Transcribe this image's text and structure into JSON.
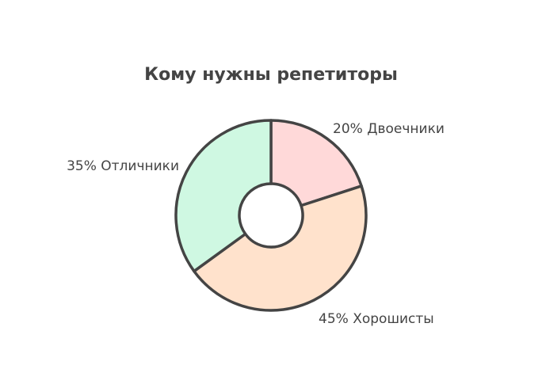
{
  "chart_data": {
    "type": "donut",
    "title": "Кому нужны репетиторы",
    "categories": [
      "Двоечники",
      "Хорошисты",
      "Отличники"
    ],
    "values": [
      20,
      45,
      35
    ],
    "value_labels": [
      "20%",
      "45%",
      "35%"
    ],
    "colors": [
      "#ffd9d9",
      "#ffe2cc",
      "#cff8e2"
    ]
  }
}
